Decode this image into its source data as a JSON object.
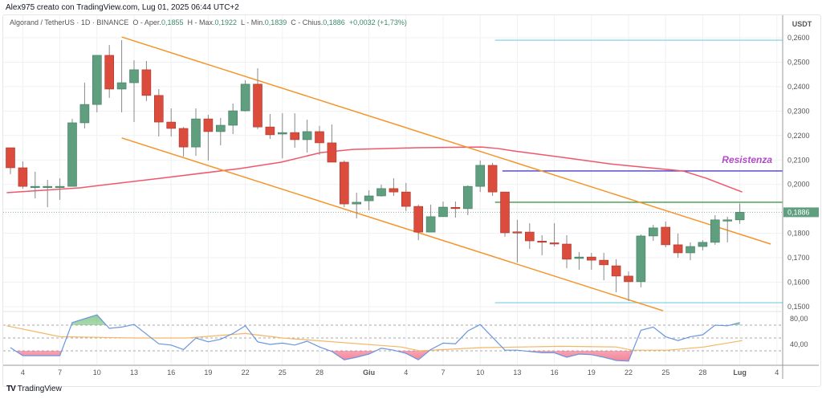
{
  "header": {
    "author_line": "Alex975 creato con TradingView.com, Lug 01, 2025 06:44 UTC+2"
  },
  "legend": {
    "symbol": "Algorand / TetherUS · 1D · BINANCE",
    "open_label": "O - Aper.",
    "open": "0,1855",
    "high_label": "H - Max.",
    "high": "0,1922",
    "low_label": "L - Min.",
    "low": "0,1839",
    "close_label": "C - Chius.",
    "close": "0,1886",
    "change": "+0,0032 (+1,73%)"
  },
  "price_axis": {
    "currency": "USDT",
    "ticks": [
      "0,2600",
      "0,2500",
      "0,2400",
      "0,2300",
      "0,2200",
      "0,2100",
      "0,2000",
      "0,1800",
      "0,1700",
      "0,1600",
      "0,1500"
    ],
    "tick_values": [
      0.26,
      0.25,
      0.24,
      0.23,
      0.22,
      0.21,
      0.2,
      0.18,
      0.17,
      0.16,
      0.15
    ],
    "current_price": "0,1886",
    "current_value": 0.1886
  },
  "rsi_axis": {
    "ticks": [
      "80,00",
      "40,00"
    ],
    "tick_values": [
      80,
      40
    ],
    "levels": [
      70,
      50,
      30
    ]
  },
  "time_axis": {
    "labels": [
      "4",
      "7",
      "10",
      "13",
      "16",
      "19",
      "22",
      "25",
      "28",
      "Giu",
      "4",
      "7",
      "10",
      "13",
      "16",
      "19",
      "22",
      "25",
      "28",
      "Lug",
      "4"
    ],
    "indices": [
      1,
      4,
      7,
      10,
      13,
      16,
      19,
      22,
      25,
      29,
      32,
      35,
      38,
      41,
      44,
      47,
      50,
      53,
      56,
      59,
      62
    ]
  },
  "annotation": {
    "label": "Resistenza"
  },
  "colors": {
    "up": "#5f9e7f",
    "down": "#dc4c3c",
    "ma": "#f0576a",
    "channel": "#f5952b",
    "resistance": "#4b3fc7",
    "label": "#b04bc7",
    "support_green": "#3f9a45",
    "cyan": "#8fd6e8",
    "rsi": "#6a95e0",
    "rsi_ma": "#f3b766"
  },
  "chart_data": {
    "type": "candlestick",
    "candles_ohlc": [
      [
        0.215,
        0.215,
        0.2042,
        0.2068
      ],
      [
        0.2068,
        0.2094,
        0.1983,
        0.1992
      ],
      [
        0.1992,
        0.2052,
        0.1943,
        0.1992
      ],
      [
        0.1992,
        0.2019,
        0.1907,
        0.1992
      ],
      [
        0.1992,
        0.2025,
        0.1937,
        0.1992
      ],
      [
        0.1992,
        0.2268,
        0.1992,
        0.2252
      ],
      [
        0.2252,
        0.2416,
        0.2229,
        0.2327
      ],
      [
        0.2327,
        0.2528,
        0.2295,
        0.2528
      ],
      [
        0.2528,
        0.257,
        0.2354,
        0.239
      ],
      [
        0.239,
        0.259,
        0.2295,
        0.2416
      ],
      [
        0.2416,
        0.2508,
        0.2255,
        0.2469
      ],
      [
        0.2469,
        0.2505,
        0.2341,
        0.2364
      ],
      [
        0.2364,
        0.239,
        0.2196,
        0.2255
      ],
      [
        0.2255,
        0.2311,
        0.2196,
        0.2229
      ],
      [
        0.2229,
        0.2235,
        0.2114,
        0.2153
      ],
      [
        0.2153,
        0.2311,
        0.2117,
        0.2268
      ],
      [
        0.2268,
        0.2285,
        0.2098,
        0.2216
      ],
      [
        0.2216,
        0.2272,
        0.216,
        0.2242
      ],
      [
        0.2242,
        0.2331,
        0.2206,
        0.2301
      ],
      [
        0.2301,
        0.2426,
        0.2298,
        0.241
      ],
      [
        0.241,
        0.2475,
        0.2226,
        0.2235
      ],
      [
        0.2235,
        0.2288,
        0.2186,
        0.2203
      ],
      [
        0.2206,
        0.2291,
        0.2107,
        0.2212
      ],
      [
        0.2212,
        0.2291,
        0.215,
        0.2183
      ],
      [
        0.2183,
        0.2265,
        0.213,
        0.2216
      ],
      [
        0.2216,
        0.2239,
        0.2121,
        0.217
      ],
      [
        0.217,
        0.2245,
        0.2091,
        0.2091
      ],
      [
        0.2091,
        0.2098,
        0.1907,
        0.192
      ],
      [
        0.192,
        0.1966,
        0.1861,
        0.1927
      ],
      [
        0.1933,
        0.1976,
        0.1894,
        0.1953
      ],
      [
        0.1953,
        0.1999,
        0.195,
        0.1983
      ],
      [
        0.1983,
        0.2025,
        0.1953,
        0.1969
      ],
      [
        0.1969,
        0.2006,
        0.1891,
        0.191
      ],
      [
        0.191,
        0.1917,
        0.1772,
        0.1805
      ],
      [
        0.1805,
        0.1917,
        0.1805,
        0.1868
      ],
      [
        0.1868,
        0.193,
        0.1868,
        0.1907
      ],
      [
        0.1906,
        0.193,
        0.1864,
        0.1904
      ],
      [
        0.1901,
        0.1996,
        0.1874,
        0.1992
      ],
      [
        0.1992,
        0.2098,
        0.1969,
        0.2078
      ],
      [
        0.2078,
        0.2088,
        0.1953,
        0.1969
      ],
      [
        0.1969,
        0.1969,
        0.1786,
        0.1802
      ],
      [
        0.1806,
        0.1855,
        0.168,
        0.1805
      ],
      [
        0.1805,
        0.1841,
        0.1736,
        0.1769
      ],
      [
        0.1768,
        0.1792,
        0.171,
        0.1766
      ],
      [
        0.1761,
        0.1841,
        0.1746,
        0.1759
      ],
      [
        0.1756,
        0.1792,
        0.1657,
        0.1694
      ],
      [
        0.1697,
        0.1723,
        0.1651,
        0.1703
      ],
      [
        0.1703,
        0.172,
        0.1651,
        0.169
      ],
      [
        0.169,
        0.172,
        0.1608,
        0.1671
      ],
      [
        0.1667,
        0.1694,
        0.1559,
        0.1625
      ],
      [
        0.1625,
        0.1644,
        0.1523,
        0.1602
      ],
      [
        0.1602,
        0.1795,
        0.1579,
        0.1789
      ],
      [
        0.1789,
        0.1835,
        0.1769,
        0.1822
      ],
      [
        0.1825,
        0.1848,
        0.1743,
        0.1753
      ],
      [
        0.1753,
        0.1799,
        0.17,
        0.172
      ],
      [
        0.172,
        0.1763,
        0.169,
        0.1746
      ],
      [
        0.1746,
        0.1772,
        0.173,
        0.1763
      ],
      [
        0.1763,
        0.1874,
        0.1753,
        0.1855
      ],
      [
        0.1855,
        0.1868,
        0.1763,
        0.1855
      ],
      [
        0.1855,
        0.1922,
        0.1839,
        0.1886
      ]
    ],
    "ma_points": [
      [
        -0.3,
        0.1966
      ],
      [
        5.6,
        0.1986
      ],
      [
        12.1,
        0.2025
      ],
      [
        18.6,
        0.2065
      ],
      [
        21.9,
        0.2091
      ],
      [
        25.1,
        0.213
      ],
      [
        27.7,
        0.2143
      ],
      [
        32.9,
        0.215
      ],
      [
        38.1,
        0.2153
      ],
      [
        39.4,
        0.2147
      ],
      [
        40.7,
        0.2137
      ],
      [
        44.6,
        0.2111
      ],
      [
        48.5,
        0.2084
      ],
      [
        51.1,
        0.2071
      ],
      [
        54.4,
        0.2055
      ],
      [
        56.3,
        0.2025
      ],
      [
        59.2,
        0.1969
      ]
    ],
    "channel_upper": [
      [
        9.0,
        0.2603
      ],
      [
        61.5,
        0.1756
      ]
    ],
    "channel_lower": [
      [
        9.0,
        0.219
      ],
      [
        52.8,
        0.1483
      ]
    ],
    "levels": [
      {
        "name": "cyan-top",
        "price": 0.259,
        "from": 39.2
      },
      {
        "name": "resistance",
        "price": 0.2055,
        "from": 39.8
      },
      {
        "name": "green",
        "price": 0.1927,
        "from": 39.2
      },
      {
        "name": "cyan-bottom",
        "price": 0.1516,
        "from": 39.2
      }
    ],
    "rsi": [
      35,
      22.5,
      22.5,
      22.5,
      22.5,
      74,
      80,
      86,
      65,
      67,
      71,
      56,
      41,
      39,
      32,
      50,
      44,
      48,
      57,
      69,
      44,
      40,
      42,
      39,
      45,
      36,
      29,
      16,
      20,
      25,
      34,
      31,
      26,
      16,
      32,
      42,
      41,
      61,
      71,
      51,
      31,
      31,
      29,
      27,
      27,
      20,
      25,
      24,
      20,
      15,
      14,
      62,
      67,
      52,
      46,
      52,
      55,
      70,
      69,
      74
    ],
    "rsi_ma_points": [
      [
        -0.3,
        69
      ],
      [
        4,
        52
      ],
      [
        10,
        50
      ],
      [
        14.3,
        50
      ],
      [
        19,
        57
      ],
      [
        22,
        50
      ],
      [
        31.6,
        36
      ],
      [
        33.1,
        30
      ],
      [
        38.1,
        35
      ],
      [
        44.6,
        37
      ],
      [
        49,
        36
      ],
      [
        50.3,
        31
      ],
      [
        53.2,
        31
      ],
      [
        56.1,
        36
      ],
      [
        59.2,
        46
      ]
    ],
    "price_range": [
      0.15,
      0.26
    ],
    "rsi_range": [
      0,
      100
    ]
  }
}
